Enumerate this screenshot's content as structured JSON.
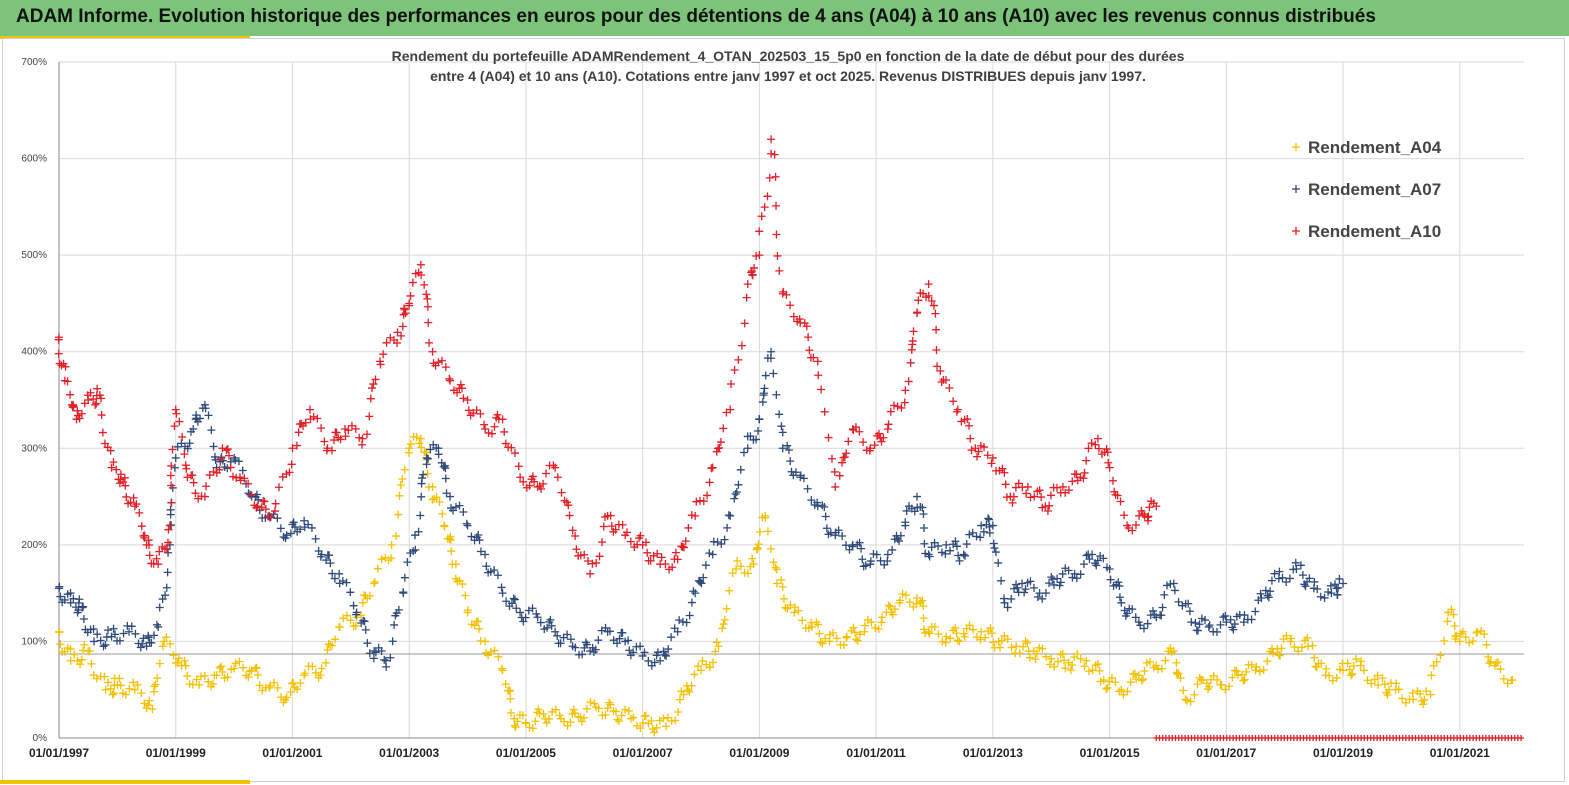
{
  "header": {
    "title": "ADAM Informe. Evolution historique des performances en euros pour des détentions de 4 ans (A04) à 10 ans (A10) avec les revenus connus distribués"
  },
  "colors": {
    "header_bg": "#7cc47a",
    "accent": "#f5c400"
  },
  "chart_data": {
    "type": "scatter",
    "title_line1": "Rendement du portefeuille ADAMRendement_4_OTAN_202503_15_5p0  en fonction de la date de début pour des durées",
    "title_line2": "entre 4 (A04) et 10 ans (A10). Cotations entre janv 1997 et oct 2025. Revenus DISTRIBUES depuis janv 1997.",
    "x_tick_labels": [
      "01/01/1997",
      "01/01/1999",
      "01/01/2001",
      "01/01/2003",
      "01/01/2005",
      "01/01/2007",
      "01/01/2009",
      "01/01/2011",
      "01/01/2013",
      "01/01/2015",
      "01/01/2017",
      "01/01/2019",
      "01/01/2021"
    ],
    "xlim": [
      1997.0,
      2022.1
    ],
    "y_tick_labels": [
      "0%",
      "100%",
      "200%",
      "300%",
      "400%",
      "500%",
      "600%",
      "700%"
    ],
    "ylim": [
      0,
      700
    ],
    "grid": true,
    "marker": "+",
    "reference_line": 87,
    "legend_position": "top-right",
    "series": [
      {
        "name": "Rendement_A04",
        "color": "#f5c000",
        "points": [
          [
            1997.0,
            110
          ],
          [
            1997.2,
            80
          ],
          [
            1997.5,
            90
          ],
          [
            1997.8,
            50
          ],
          [
            1998.0,
            55
          ],
          [
            1998.3,
            50
          ],
          [
            1998.6,
            30
          ],
          [
            1998.8,
            100
          ],
          [
            1999.1,
            75
          ],
          [
            1999.4,
            55
          ],
          [
            1999.7,
            65
          ],
          [
            2000.0,
            72
          ],
          [
            2000.3,
            70
          ],
          [
            2000.6,
            52
          ],
          [
            2000.9,
            42
          ],
          [
            2001.2,
            65
          ],
          [
            2001.5,
            72
          ],
          [
            2001.8,
            115
          ],
          [
            2002.1,
            125
          ],
          [
            2002.4,
            160
          ],
          [
            2002.7,
            200
          ],
          [
            2003.0,
            300
          ],
          [
            2003.2,
            310
          ],
          [
            2003.4,
            260
          ],
          [
            2003.6,
            220
          ],
          [
            2003.8,
            180
          ],
          [
            2004.0,
            130
          ],
          [
            2004.3,
            100
          ],
          [
            2004.6,
            70
          ],
          [
            2004.8,
            20
          ],
          [
            2005.0,
            15
          ],
          [
            2005.3,
            25
          ],
          [
            2005.6,
            20
          ],
          [
            2005.9,
            22
          ],
          [
            2006.2,
            32
          ],
          [
            2006.5,
            28
          ],
          [
            2006.8,
            20
          ],
          [
            2007.1,
            15
          ],
          [
            2007.4,
            12
          ],
          [
            2007.7,
            45
          ],
          [
            2008.0,
            70
          ],
          [
            2008.3,
            95
          ],
          [
            2008.6,
            175
          ],
          [
            2008.9,
            180
          ],
          [
            2009.1,
            230
          ],
          [
            2009.3,
            160
          ],
          [
            2009.6,
            130
          ],
          [
            2009.9,
            115
          ],
          [
            2010.2,
            100
          ],
          [
            2010.5,
            105
          ],
          [
            2010.8,
            110
          ],
          [
            2011.1,
            125
          ],
          [
            2011.4,
            140
          ],
          [
            2011.7,
            145
          ],
          [
            2011.9,
            110
          ],
          [
            2012.2,
            105
          ],
          [
            2012.5,
            108
          ],
          [
            2012.8,
            110
          ],
          [
            2013.1,
            100
          ],
          [
            2013.4,
            95
          ],
          [
            2013.7,
            90
          ],
          [
            2014.0,
            82
          ],
          [
            2014.3,
            78
          ],
          [
            2014.6,
            80
          ],
          [
            2014.9,
            60
          ],
          [
            2015.2,
            50
          ],
          [
            2015.5,
            65
          ],
          [
            2015.8,
            75
          ],
          [
            2016.1,
            90
          ],
          [
            2016.3,
            40
          ],
          [
            2016.6,
            60
          ],
          [
            2016.9,
            55
          ],
          [
            2017.2,
            65
          ],
          [
            2017.5,
            70
          ],
          [
            2017.8,
            88
          ],
          [
            2018.1,
            100
          ],
          [
            2018.4,
            95
          ],
          [
            2018.7,
            65
          ],
          [
            2019.0,
            70
          ],
          [
            2019.3,
            75
          ],
          [
            2019.6,
            55
          ],
          [
            2019.9,
            50
          ],
          [
            2020.2,
            40
          ],
          [
            2020.5,
            45
          ],
          [
            2020.8,
            130
          ],
          [
            2021.0,
            100
          ],
          [
            2021.3,
            110
          ],
          [
            2021.6,
            75
          ],
          [
            2021.9,
            60
          ]
        ]
      },
      {
        "name": "Rendement_A07",
        "color": "#2f4a7a",
        "points": [
          [
            1997.0,
            155
          ],
          [
            1997.2,
            140
          ],
          [
            1997.4,
            135
          ],
          [
            1997.6,
            100
          ],
          [
            1997.9,
            105
          ],
          [
            1998.2,
            110
          ],
          [
            1998.5,
            95
          ],
          [
            1998.7,
            115
          ],
          [
            1998.9,
            200
          ],
          [
            1999.0,
            290
          ],
          [
            1999.3,
            320
          ],
          [
            1999.5,
            345
          ],
          [
            1999.7,
            280
          ],
          [
            2000.0,
            290
          ],
          [
            2000.3,
            250
          ],
          [
            2000.6,
            230
          ],
          [
            2000.9,
            210
          ],
          [
            2001.2,
            225
          ],
          [
            2001.5,
            190
          ],
          [
            2001.8,
            170
          ],
          [
            2002.1,
            130
          ],
          [
            2002.4,
            90
          ],
          [
            2002.6,
            80
          ],
          [
            2002.9,
            150
          ],
          [
            2003.1,
            210
          ],
          [
            2003.3,
            290
          ],
          [
            2003.5,
            300
          ],
          [
            2003.7,
            250
          ],
          [
            2004.0,
            220
          ],
          [
            2004.3,
            190
          ],
          [
            2004.6,
            150
          ],
          [
            2004.9,
            130
          ],
          [
            2005.2,
            125
          ],
          [
            2005.5,
            110
          ],
          [
            2005.8,
            95
          ],
          [
            2006.1,
            90
          ],
          [
            2006.4,
            110
          ],
          [
            2006.7,
            100
          ],
          [
            2007.0,
            85
          ],
          [
            2007.3,
            80
          ],
          [
            2007.6,
            110
          ],
          [
            2007.9,
            150
          ],
          [
            2008.2,
            190
          ],
          [
            2008.5,
            230
          ],
          [
            2008.8,
            300
          ],
          [
            2009.0,
            330
          ],
          [
            2009.2,
            400
          ],
          [
            2009.4,
            300
          ],
          [
            2009.7,
            270
          ],
          [
            2010.0,
            240
          ],
          [
            2010.3,
            210
          ],
          [
            2010.6,
            200
          ],
          [
            2010.9,
            180
          ],
          [
            2011.2,
            190
          ],
          [
            2011.5,
            220
          ],
          [
            2011.7,
            250
          ],
          [
            2011.9,
            190
          ],
          [
            2012.2,
            200
          ],
          [
            2012.5,
            190
          ],
          [
            2012.8,
            220
          ],
          [
            2013.0,
            220
          ],
          [
            2013.2,
            140
          ],
          [
            2013.5,
            160
          ],
          [
            2013.8,
            150
          ],
          [
            2014.1,
            165
          ],
          [
            2014.4,
            170
          ],
          [
            2014.7,
            190
          ],
          [
            2015.0,
            175
          ],
          [
            2015.2,
            140
          ],
          [
            2015.5,
            120
          ],
          [
            2015.8,
            125
          ],
          [
            2016.1,
            160
          ],
          [
            2016.4,
            120
          ],
          [
            2016.7,
            115
          ],
          [
            2017.0,
            120
          ],
          [
            2017.3,
            120
          ],
          [
            2017.6,
            145
          ],
          [
            2017.9,
            165
          ],
          [
            2018.2,
            175
          ],
          [
            2018.5,
            155
          ],
          [
            2018.8,
            150
          ],
          [
            2019.0,
            160
          ]
        ]
      },
      {
        "name": "Rendement_A10",
        "color": "#e21f26",
        "points": [
          [
            1997.0,
            415
          ],
          [
            1997.1,
            370
          ],
          [
            1997.3,
            330
          ],
          [
            1997.5,
            350
          ],
          [
            1997.7,
            355
          ],
          [
            1997.9,
            280
          ],
          [
            1998.1,
            265
          ],
          [
            1998.3,
            240
          ],
          [
            1998.5,
            200
          ],
          [
            1998.7,
            180
          ],
          [
            1998.9,
            220
          ],
          [
            1999.0,
            340
          ],
          [
            1999.2,
            270
          ],
          [
            1999.5,
            250
          ],
          [
            1999.8,
            300
          ],
          [
            2000.1,
            270
          ],
          [
            2000.4,
            240
          ],
          [
            2000.7,
            235
          ],
          [
            2001.0,
            300
          ],
          [
            2001.3,
            340
          ],
          [
            2001.6,
            300
          ],
          [
            2001.9,
            320
          ],
          [
            2002.2,
            310
          ],
          [
            2002.5,
            390
          ],
          [
            2002.8,
            420
          ],
          [
            2003.0,
            450
          ],
          [
            2003.2,
            490
          ],
          [
            2003.4,
            400
          ],
          [
            2003.7,
            370
          ],
          [
            2004.0,
            350
          ],
          [
            2004.3,
            320
          ],
          [
            2004.6,
            330
          ],
          [
            2004.9,
            270
          ],
          [
            2005.2,
            260
          ],
          [
            2005.5,
            280
          ],
          [
            2005.8,
            215
          ],
          [
            2006.1,
            170
          ],
          [
            2006.4,
            230
          ],
          [
            2006.7,
            210
          ],
          [
            2007.0,
            200
          ],
          [
            2007.3,
            180
          ],
          [
            2007.6,
            185
          ],
          [
            2007.9,
            230
          ],
          [
            2008.2,
            280
          ],
          [
            2008.5,
            340
          ],
          [
            2008.8,
            470
          ],
          [
            2009.0,
            500
          ],
          [
            2009.2,
            620
          ],
          [
            2009.4,
            460
          ],
          [
            2009.7,
            430
          ],
          [
            2010.0,
            390
          ],
          [
            2010.3,
            260
          ],
          [
            2010.6,
            320
          ],
          [
            2010.9,
            300
          ],
          [
            2011.2,
            320
          ],
          [
            2011.5,
            360
          ],
          [
            2011.7,
            440
          ],
          [
            2011.9,
            470
          ],
          [
            2012.1,
            380
          ],
          [
            2012.4,
            340
          ],
          [
            2012.7,
            300
          ],
          [
            2013.0,
            290
          ],
          [
            2013.3,
            250
          ],
          [
            2013.6,
            260
          ],
          [
            2013.9,
            240
          ],
          [
            2014.2,
            260
          ],
          [
            2014.5,
            270
          ],
          [
            2014.8,
            310
          ],
          [
            2015.0,
            280
          ],
          [
            2015.3,
            220
          ],
          [
            2015.6,
            230
          ],
          [
            2015.8,
            240
          ]
        ]
      }
    ],
    "red_baseline": {
      "x_start": 2015.8,
      "x_end": 2022.1,
      "y": 0
    }
  }
}
